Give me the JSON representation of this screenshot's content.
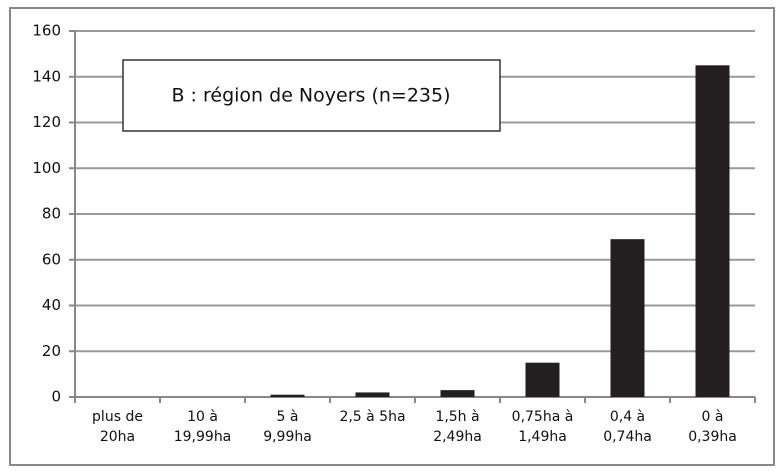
{
  "chart_data": {
    "type": "bar",
    "title": "B : région de Noyers (n=235)",
    "categories": [
      "plus de\n20ha",
      "10 à\n19,99ha",
      "5 à\n9,99ha",
      "2,5 à 5ha",
      "1,5h à\n2,49ha",
      "0,75ha à\n1,49ha",
      "0,4 à\n0,74ha",
      "0 à\n0,39ha"
    ],
    "values": [
      0,
      0,
      1,
      2,
      3,
      15,
      69,
      145
    ],
    "color": "#231f20",
    "ylim": [
      0,
      160
    ],
    "yticks": [
      0,
      20,
      40,
      60,
      80,
      100,
      120,
      140,
      160
    ],
    "grid": true
  }
}
